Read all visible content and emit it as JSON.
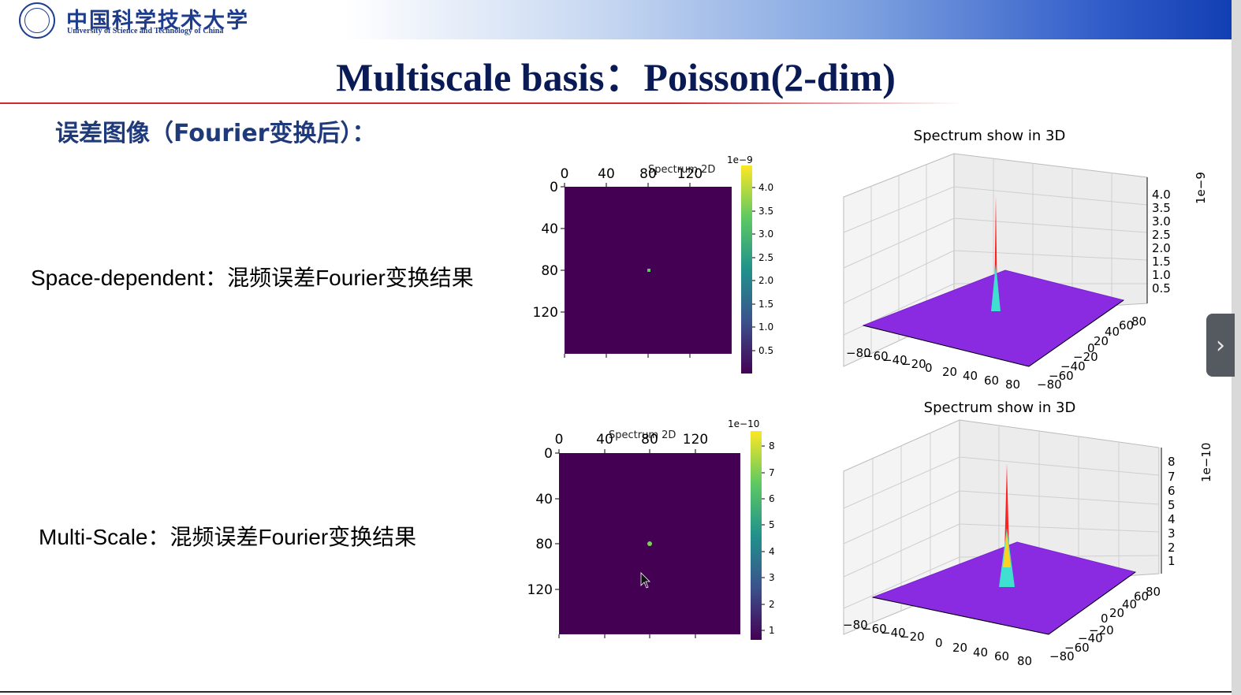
{
  "header": {
    "logo_cn": "中国科学技术大学",
    "logo_en": "University of Science and Technology of China",
    "title": "Multiscale basis：Poisson(2-dim)"
  },
  "section_title": "误差图像（Fourier变换后）：",
  "rows": [
    {
      "label": "Space-dependent：混频误差Fourier变换结果",
      "heatmap": {
        "title": "Spectrum 2D",
        "xticks": [
          "0",
          "40",
          "80",
          "120"
        ],
        "yticks": [
          "0",
          "40",
          "80",
          "120"
        ],
        "colorbar_exponent": "1e−9",
        "colorbar_ticks": [
          "4.0",
          "3.5",
          "3.0",
          "2.5",
          "2.0",
          "1.5",
          "1.0",
          "0.5"
        ]
      },
      "surface": {
        "title": "Spectrum show in 3D",
        "xticks": [
          "−80",
          "−60",
          "−40",
          "−20",
          "0",
          "20",
          "40",
          "60",
          "80"
        ],
        "yticks": [
          "−80",
          "−60",
          "−40",
          "−20",
          "0",
          "20",
          "40",
          "60",
          "80"
        ],
        "zticks": [
          "4.0",
          "3.5",
          "3.0",
          "2.5",
          "2.0",
          "1.5",
          "1.0",
          "0.5"
        ],
        "z_exponent": "1e−9"
      }
    },
    {
      "label": "Multi-Scale：混频误差Fourier变换结果",
      "heatmap": {
        "title": "Spectrum 2D",
        "xticks": [
          "0",
          "40",
          "80",
          "120"
        ],
        "yticks": [
          "0",
          "40",
          "80",
          "120"
        ],
        "colorbar_exponent": "1e−10",
        "colorbar_ticks": [
          "8",
          "7",
          "6",
          "5",
          "4",
          "3",
          "2",
          "1"
        ]
      },
      "surface": {
        "title": "Spectrum show in 3D",
        "xticks": [
          "−80",
          "−60",
          "−40",
          "−20",
          "0",
          "20",
          "40",
          "60",
          "80"
        ],
        "yticks": [
          "−80",
          "−60",
          "−40",
          "−20",
          "0",
          "20",
          "40",
          "60",
          "80"
        ],
        "zticks": [
          "8",
          "7",
          "6",
          "5",
          "4",
          "3",
          "2",
          "1"
        ],
        "z_exponent": "1e−10"
      }
    }
  ],
  "colors": {
    "heatmap_background": "#440154",
    "surface_floor": "#8a2be2",
    "peak": "#ff2020",
    "title_text": "#0a1a55",
    "section_text": "#1f3a7a",
    "accent_line": "#d0282d"
  },
  "navigation": {
    "next_icon": "chevron-right-icon"
  }
}
